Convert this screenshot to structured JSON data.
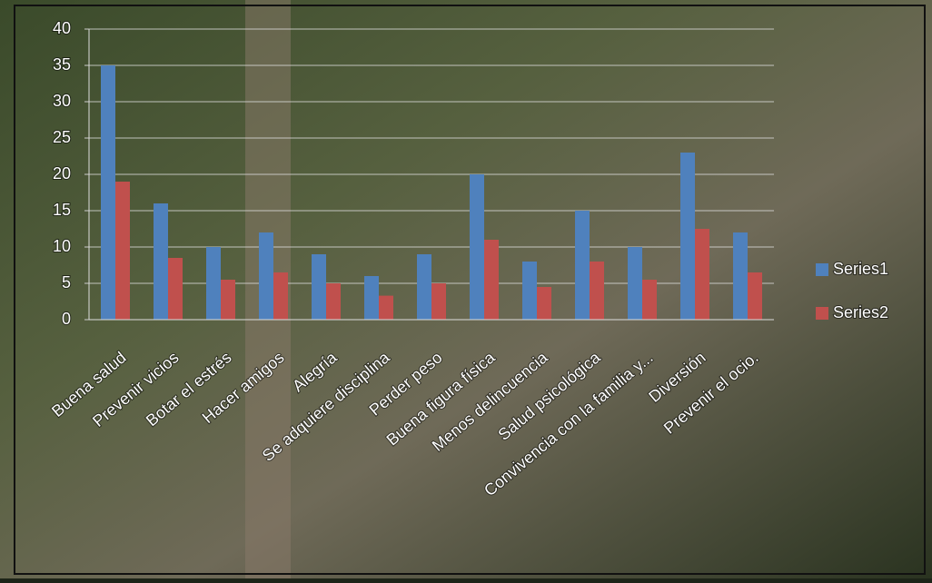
{
  "chart_data": {
    "type": "bar",
    "categories": [
      "Buena salud",
      "Prevenir vicios",
      "Botar el estrés",
      "Hacer amigos",
      "Alegría",
      "Se adquiere disciplina",
      "Perder peso",
      "Buena figura física",
      "Menos delincuencia",
      "Salud psicológica",
      "Convivencia con la familia y...",
      "Diversión",
      "Prevenir el ocio."
    ],
    "series": [
      {
        "name": "Series1",
        "color": "#4f81bd",
        "values": [
          35,
          16,
          10,
          12,
          9,
          6,
          9,
          20,
          8,
          15,
          10,
          23,
          12
        ]
      },
      {
        "name": "Series2",
        "color": "#c0504d",
        "values": [
          19,
          8.5,
          5.5,
          6.5,
          5,
          3.3,
          5,
          11,
          4.5,
          8,
          5.5,
          12.5,
          6.5
        ]
      }
    ],
    "ylim": [
      0,
      40
    ],
    "yticks": [
      0,
      5,
      10,
      15,
      20,
      25,
      30,
      35,
      40
    ],
    "grid": true,
    "legend": "right"
  }
}
